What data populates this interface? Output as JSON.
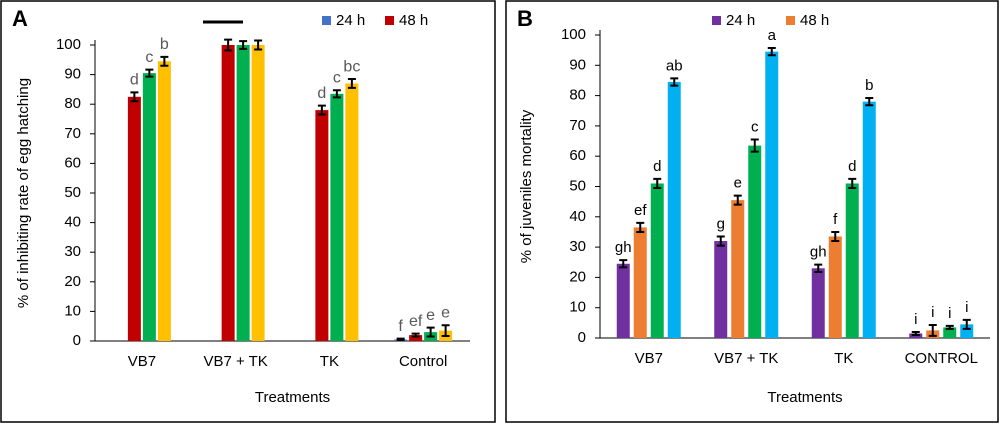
{
  "chart_data": [
    {
      "type": "bar",
      "panel": "A",
      "y_label": "% of inhibiting rate of egg hatching",
      "x_label": "Treatments",
      "categories": [
        "VB7",
        "VB7 + TK",
        "TK",
        "Control"
      ],
      "series": [
        {
          "name": "24 h",
          "color": "#4472c4",
          "values": [
            null,
            null,
            null,
            0.5
          ],
          "errors": [
            null,
            null,
            null,
            0.3
          ],
          "labels": [
            null,
            null,
            null,
            "f"
          ]
        },
        {
          "name": "48 h",
          "color": "#c00000",
          "values": [
            82.5,
            100,
            78,
            2
          ],
          "errors": [
            1.5,
            1.8,
            1.5,
            0.5
          ],
          "labels": [
            "d",
            null,
            "d",
            "ef"
          ]
        },
        {
          "color": "#00b050",
          "values": [
            90.5,
            100,
            83.5,
            3
          ],
          "errors": [
            1.2,
            1.3,
            1.2,
            1.5
          ],
          "labels": [
            "c",
            null,
            "c",
            "e"
          ]
        },
        {
          "color": "#ffc000",
          "values": [
            94.5,
            100,
            87,
            3.5
          ],
          "errors": [
            1.5,
            1.5,
            1.5,
            1.8
          ],
          "labels": [
            "b",
            null,
            "bc",
            "e"
          ]
        }
      ],
      "ylim": [
        0,
        100
      ],
      "yticks": [
        0,
        10,
        20,
        30,
        40,
        50,
        60,
        70,
        80,
        90,
        100
      ]
    },
    {
      "type": "bar",
      "panel": "B",
      "y_label": "% of juveniles mortality",
      "x_label": "Treatments",
      "categories": [
        "VB7",
        "VB7 + TK",
        "TK",
        "CONTROL"
      ],
      "series": [
        {
          "name": "24 h",
          "color": "#7030a0",
          "values": [
            24.5,
            32,
            23,
            1.5
          ],
          "errors": [
            1.2,
            1.5,
            1.2,
            0.5
          ],
          "labels": [
            "gh",
            "g",
            "gh",
            "i"
          ]
        },
        {
          "name": "48 h",
          "color": "#ed7d31",
          "values": [
            36.5,
            45.5,
            33.5,
            2.5
          ],
          "errors": [
            1.5,
            1.5,
            1.5,
            1.8
          ],
          "labels": [
            "ef",
            "e",
            "f",
            "i"
          ]
        },
        {
          "color": "#00b050",
          "values": [
            51,
            63.5,
            51,
            3.5
          ],
          "errors": [
            1.5,
            2,
            1.5,
            0.5
          ],
          "labels": [
            "d",
            "c",
            "d",
            "i"
          ]
        },
        {
          "color": "#00b0f0",
          "values": [
            84.5,
            94.5,
            78,
            4.5
          ],
          "errors": [
            1.2,
            1.2,
            1.2,
            1.5
          ],
          "labels": [
            "ab",
            "a",
            "b",
            "i"
          ]
        }
      ],
      "ylim": [
        0,
        100
      ],
      "yticks": [
        0,
        10,
        20,
        30,
        40,
        50,
        60,
        70,
        80,
        90,
        100
      ]
    }
  ]
}
